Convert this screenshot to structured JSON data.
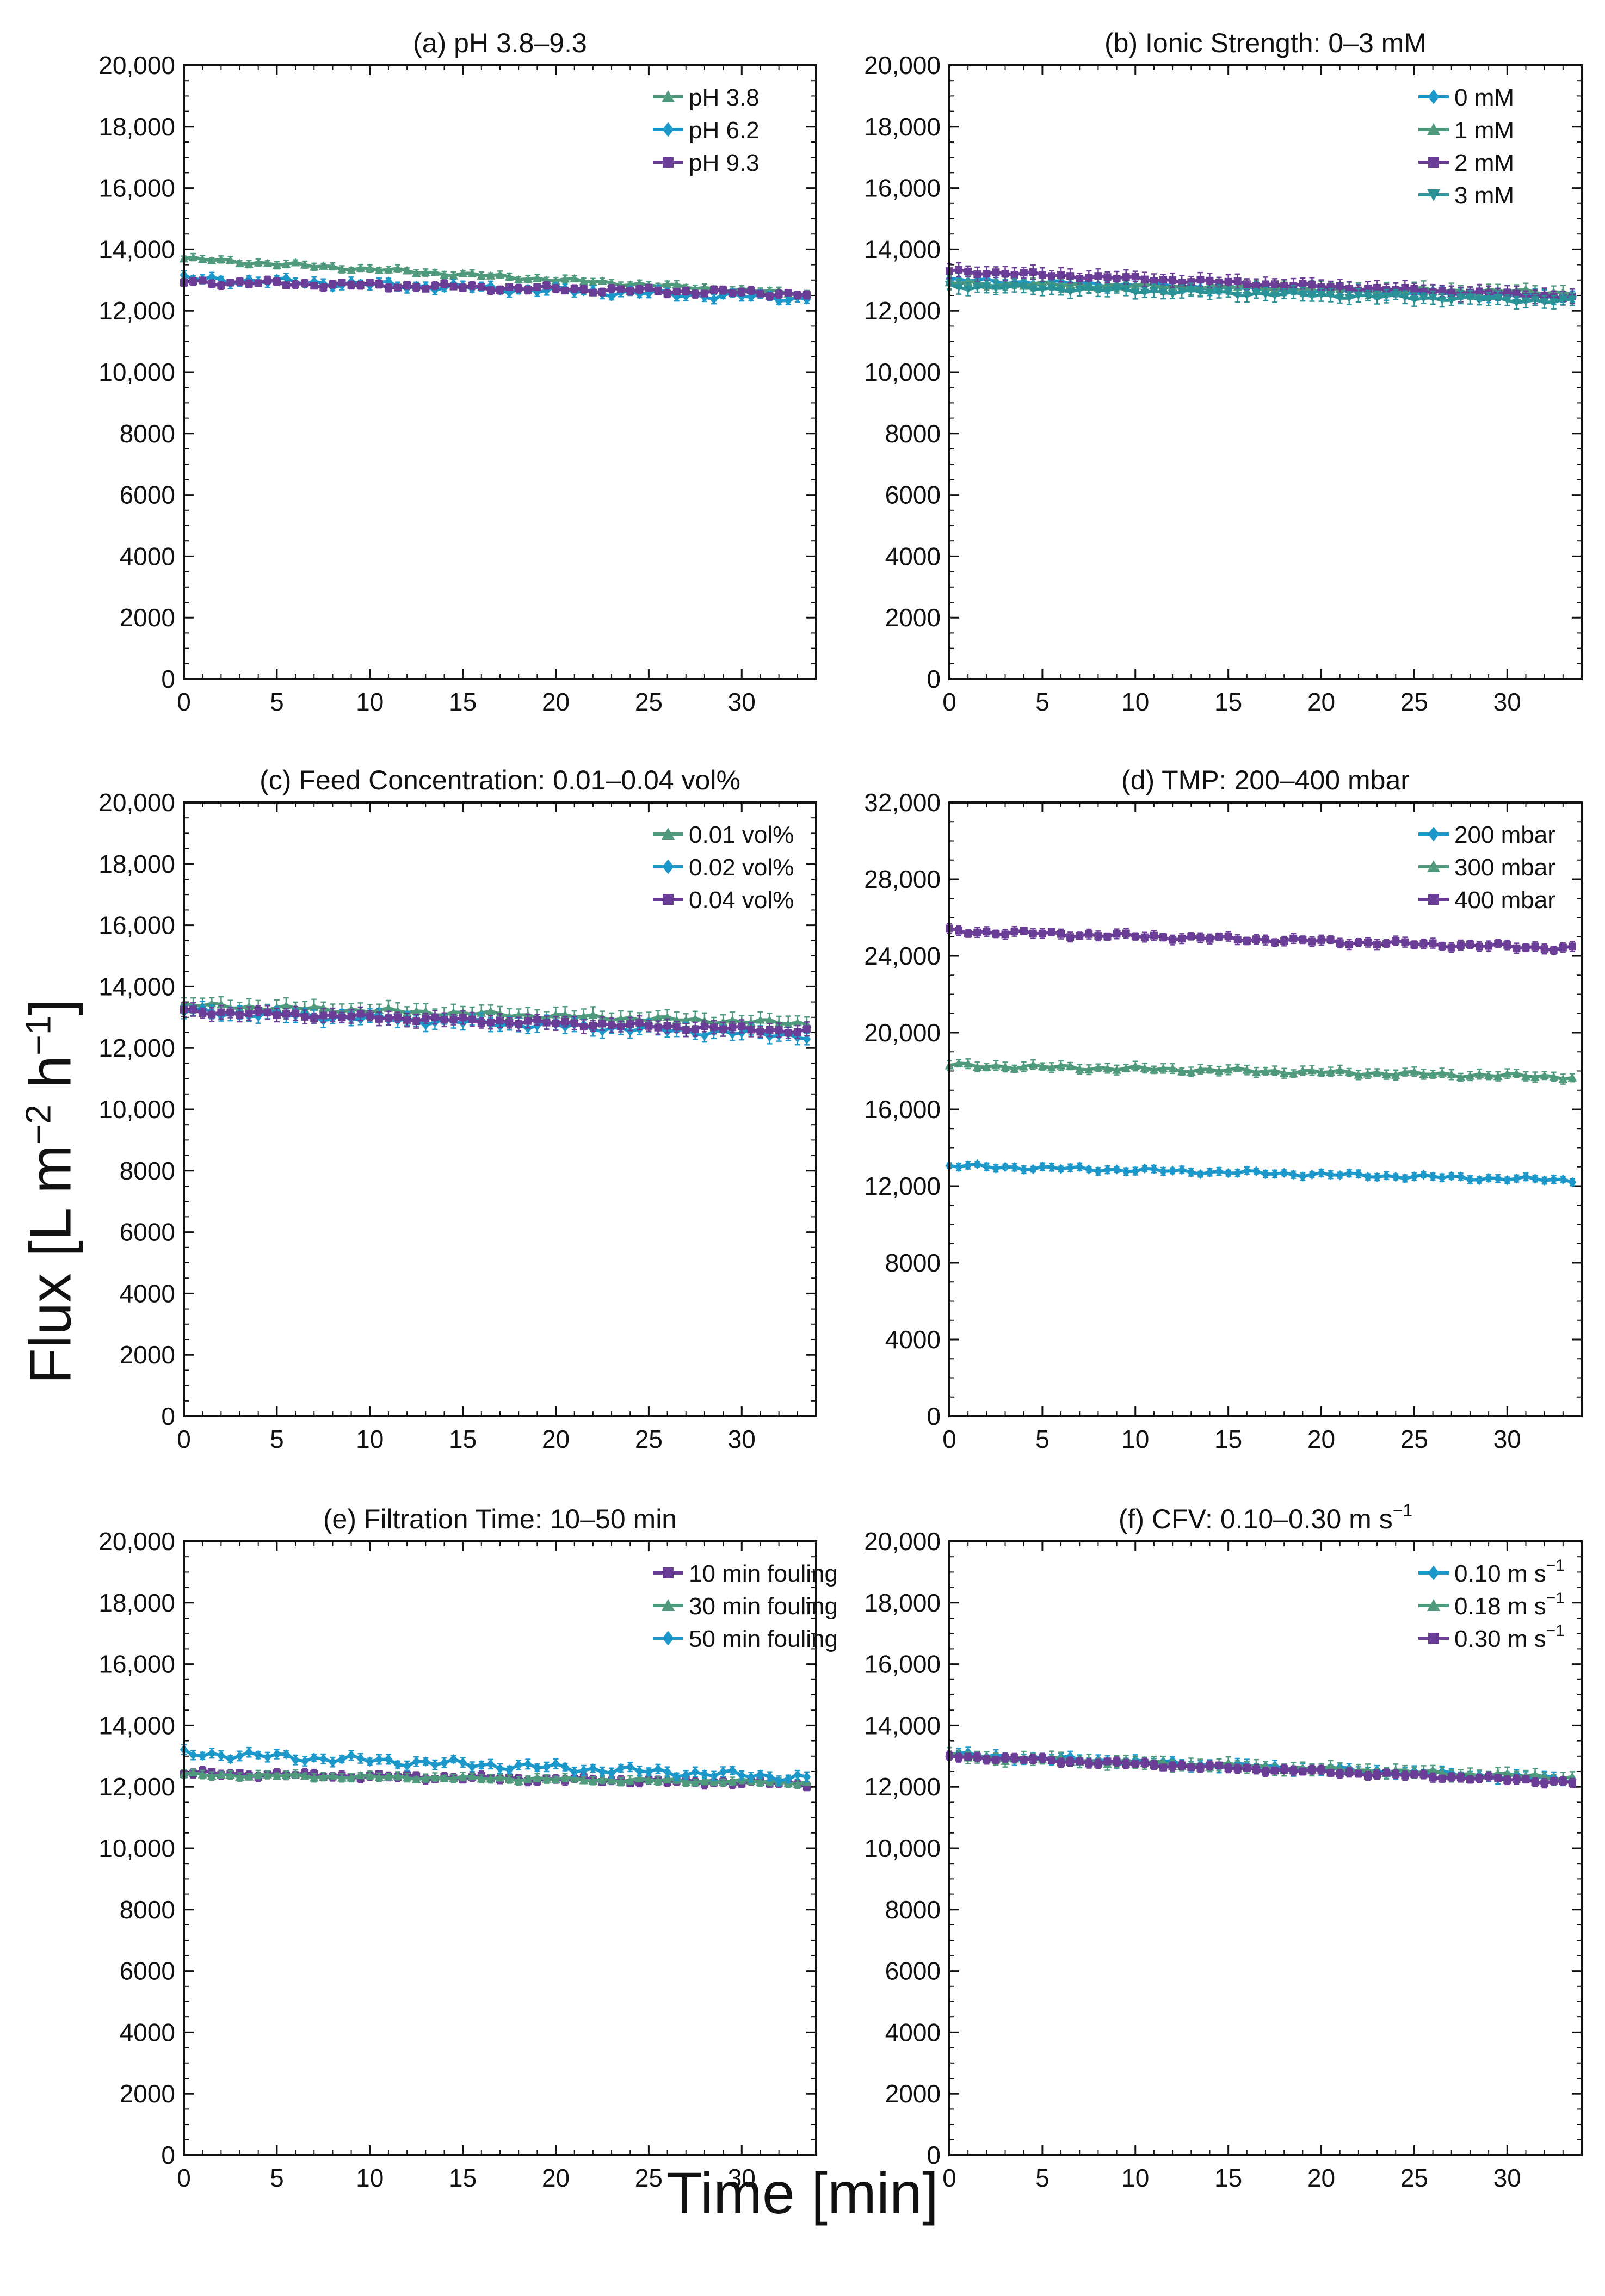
{
  "figure": {
    "ylabel_main": "Flux [L m",
    "ylabel_exp1": "−2",
    "ylabel_mid": " h",
    "ylabel_exp2": "−1",
    "ylabel_end": "]",
    "xlabel": "Time [min]"
  },
  "colors": {
    "green": "#4f9a7d",
    "blue": "#1b98c9",
    "purple": "#6a3d96",
    "teal": "#2a9296"
  },
  "chart_data": [
    {
      "type": "line",
      "title": "(a) pH 3.8–9.3",
      "xlim": [
        0,
        34
      ],
      "ylim": [
        0,
        20000
      ],
      "xticks": [
        0,
        5,
        10,
        15,
        20,
        25,
        30
      ],
      "yticks": [
        0,
        2000,
        4000,
        6000,
        8000,
        10000,
        12000,
        14000,
        16000,
        18000,
        20000
      ],
      "ytick_labels": [
        "0",
        "2000",
        "4000",
        "6000",
        "8000",
        "10,000",
        "12,000",
        "14,000",
        "16,000",
        "18,000",
        "20,000"
      ],
      "x_start": 0,
      "x_step": 0.5,
      "n_points": 68,
      "series": [
        {
          "name": "pH 3.8",
          "color": "#4f9a7d",
          "marker": "triangle",
          "start": 13700,
          "end": 12550,
          "wobble": 80,
          "err": 120
        },
        {
          "name": "pH 6.2",
          "color": "#1b98c9",
          "marker": "diamond",
          "start": 13050,
          "end": 12400,
          "wobble": 140,
          "err": 150
        },
        {
          "name": "pH 9.3",
          "color": "#6a3d96",
          "marker": "square",
          "start": 12950,
          "end": 12550,
          "wobble": 110,
          "err": 130
        }
      ]
    },
    {
      "type": "line",
      "title": "(b) Ionic Strength: 0–3 mM",
      "xlim": [
        0,
        34
      ],
      "ylim": [
        0,
        20000
      ],
      "xticks": [
        0,
        5,
        10,
        15,
        20,
        25,
        30
      ],
      "yticks": [
        0,
        2000,
        4000,
        6000,
        8000,
        10000,
        12000,
        14000,
        16000,
        18000,
        20000
      ],
      "ytick_labels": [
        "0",
        "2000",
        "4000",
        "6000",
        "8000",
        "10,000",
        "12,000",
        "14,000",
        "16,000",
        "18,000",
        "20,000"
      ],
      "x_start": 0,
      "x_step": 0.5,
      "n_points": 68,
      "series": [
        {
          "name": "0 mM",
          "color": "#1b98c9",
          "marker": "diamond",
          "start": 13000,
          "end": 12450,
          "wobble": 90,
          "err": 200
        },
        {
          "name": "1 mM",
          "color": "#4f9a7d",
          "marker": "triangle",
          "start": 12900,
          "end": 12600,
          "wobble": 90,
          "err": 220
        },
        {
          "name": "2 mM",
          "color": "#6a3d96",
          "marker": "square",
          "start": 13300,
          "end": 12450,
          "wobble": 80,
          "err": 240
        },
        {
          "name": "3 mM",
          "color": "#2a9296",
          "marker": "triangle-down",
          "start": 12800,
          "end": 12300,
          "wobble": 90,
          "err": 220
        }
      ]
    },
    {
      "type": "line",
      "title": "(c) Feed Concentration: 0.01–0.04 vol%",
      "xlim": [
        0,
        34
      ],
      "ylim": [
        0,
        20000
      ],
      "xticks": [
        0,
        5,
        10,
        15,
        20,
        25,
        30
      ],
      "yticks": [
        0,
        2000,
        4000,
        6000,
        8000,
        10000,
        12000,
        14000,
        16000,
        18000,
        20000
      ],
      "ytick_labels": [
        "0",
        "2000",
        "4000",
        "6000",
        "8000",
        "10,000",
        "12,000",
        "14,000",
        "16,000",
        "18,000",
        "20,000"
      ],
      "x_start": 0,
      "x_step": 0.5,
      "n_points": 68,
      "series": [
        {
          "name": "0.01 vol%",
          "color": "#4f9a7d",
          "marker": "triangle",
          "start": 13400,
          "end": 12800,
          "wobble": 100,
          "err": 260
        },
        {
          "name": "0.02 vol%",
          "color": "#1b98c9",
          "marker": "diamond",
          "start": 13200,
          "end": 12400,
          "wobble": 140,
          "err": 230
        },
        {
          "name": "0.04 vol%",
          "color": "#6a3d96",
          "marker": "square",
          "start": 13200,
          "end": 12550,
          "wobble": 100,
          "err": 230
        }
      ]
    },
    {
      "type": "line",
      "title": "(d) TMP: 200–400 mbar",
      "xlim": [
        0,
        34
      ],
      "ylim": [
        0,
        32000
      ],
      "xticks": [
        0,
        5,
        10,
        15,
        20,
        25,
        30
      ],
      "yticks": [
        0,
        4000,
        8000,
        12000,
        16000,
        20000,
        24000,
        28000,
        32000
      ],
      "ytick_labels": [
        "0",
        "4000",
        "8000",
        "12,000",
        "16,000",
        "20,000",
        "24,000",
        "28,000",
        "32,000"
      ],
      "x_start": 0,
      "x_step": 0.5,
      "n_points": 68,
      "series": [
        {
          "name": "200 mbar",
          "color": "#1b98c9",
          "marker": "diamond",
          "start": 13050,
          "end": 12300,
          "wobble": 130,
          "err": 200
        },
        {
          "name": "300 mbar",
          "color": "#4f9a7d",
          "marker": "triangle",
          "start": 18300,
          "end": 17700,
          "wobble": 140,
          "err": 260
        },
        {
          "name": "400 mbar",
          "color": "#6a3d96",
          "marker": "square",
          "start": 25300,
          "end": 24400,
          "wobble": 150,
          "err": 260
        }
      ]
    },
    {
      "type": "line",
      "title": "(e) Filtration Time: 10–50 min",
      "xlim": [
        0,
        34
      ],
      "ylim": [
        0,
        20000
      ],
      "xticks": [
        0,
        5,
        10,
        15,
        20,
        25,
        30
      ],
      "yticks": [
        0,
        2000,
        4000,
        6000,
        8000,
        10000,
        12000,
        14000,
        16000,
        18000,
        20000
      ],
      "ytick_labels": [
        "0",
        "2000",
        "4000",
        "6000",
        "8000",
        "10,000",
        "12,000",
        "14,000",
        "16,000",
        "18,000",
        "20,000"
      ],
      "x_start": 0,
      "x_step": 0.5,
      "n_points": 68,
      "series": [
        {
          "name": "10 min fouling",
          "color": "#6a3d96",
          "marker": "square",
          "start": 12450,
          "end": 12100,
          "wobble": 90,
          "err": 150
        },
        {
          "name": "30 min fouling",
          "color": "#4f9a7d",
          "marker": "triangle",
          "start": 12400,
          "end": 12150,
          "wobble": 70,
          "err": 140
        },
        {
          "name": "50 min fouling",
          "color": "#1b98c9",
          "marker": "diamond",
          "start": 13100,
          "end": 12300,
          "wobble": 150,
          "err": 160
        }
      ]
    },
    {
      "type": "line",
      "title": "(f) CFV: 0.10–0.30 m s",
      "title_sup": "−1",
      "xlim": [
        0,
        34
      ],
      "ylim": [
        0,
        20000
      ],
      "xticks": [
        0,
        5,
        10,
        15,
        20,
        25,
        30
      ],
      "yticks": [
        0,
        2000,
        4000,
        6000,
        8000,
        10000,
        12000,
        14000,
        16000,
        18000,
        20000
      ],
      "ytick_labels": [
        "0",
        "2000",
        "4000",
        "6000",
        "8000",
        "10,000",
        "12,000",
        "14,000",
        "16,000",
        "18,000",
        "20,000"
      ],
      "x_start": 0,
      "x_step": 0.5,
      "n_points": 68,
      "series": [
        {
          "name": "0.10 m s",
          "sup": "−1",
          "color": "#1b98c9",
          "marker": "diamond",
          "start": 13050,
          "end": 12250,
          "wobble": 110,
          "err": 170
        },
        {
          "name": "0.18 m s",
          "sup": "−1",
          "color": "#4f9a7d",
          "marker": "triangle",
          "start": 13000,
          "end": 12300,
          "wobble": 100,
          "err": 200
        },
        {
          "name": "0.30 m s",
          "sup": "−1",
          "color": "#6a3d96",
          "marker": "square",
          "start": 13000,
          "end": 12150,
          "wobble": 80,
          "err": 150
        }
      ]
    }
  ]
}
